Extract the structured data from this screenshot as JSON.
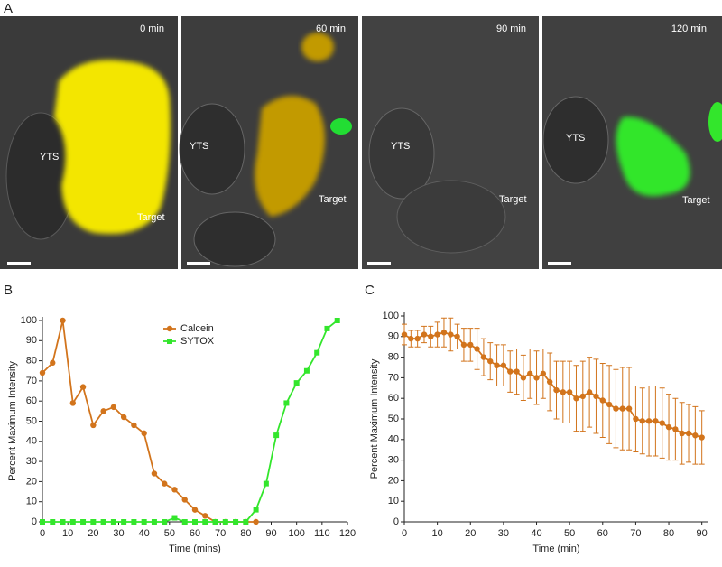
{
  "figure_labels": [
    "A",
    "B",
    "C"
  ],
  "panels": [
    {
      "time": "0 min",
      "labels": [
        "YTS",
        "Target"
      ]
    },
    {
      "time": "60 min",
      "labels": [
        "YTS",
        "Target"
      ]
    },
    {
      "time": "90 min",
      "labels": [
        "YTS",
        "Target"
      ]
    },
    {
      "time": "120 min",
      "labels": [
        "YTS",
        "Target"
      ]
    }
  ],
  "chart_data": [
    {
      "type": "line",
      "x_label": "Time (mins)",
      "y_label": "Percent Maximum Intensity",
      "x": [
        0,
        4,
        8,
        12,
        16,
        20,
        24,
        28,
        32,
        36,
        40,
        44,
        48,
        52,
        56,
        60,
        64,
        68,
        72,
        76,
        80,
        84,
        88,
        92,
        96,
        100,
        104,
        108,
        112,
        116
      ],
      "series": [
        {
          "name": "Calcein",
          "color": "#d2741c",
          "marker": "circle",
          "values": [
            74,
            79,
            100,
            59,
            67,
            48,
            55,
            57,
            52,
            48,
            44,
            24,
            19,
            16,
            11,
            6,
            3,
            0,
            0,
            0,
            0,
            0,
            null,
            null,
            null,
            null,
            null,
            null,
            null,
            null
          ]
        },
        {
          "name": "SYTOX",
          "color": "#33e62c",
          "marker": "square",
          "values": [
            0,
            0,
            0,
            0,
            0,
            0,
            0,
            0,
            0,
            0,
            0,
            0,
            0,
            2,
            0,
            0,
            0,
            0,
            0,
            0,
            0,
            6,
            19,
            43,
            59,
            69,
            75,
            84,
            96,
            100
          ]
        }
      ],
      "xlim": [
        0,
        120
      ],
      "xticks": [
        0,
        10,
        20,
        30,
        40,
        50,
        60,
        70,
        80,
        90,
        100,
        110,
        120
      ],
      "ylim": [
        0,
        100
      ],
      "yticks": [
        0,
        10,
        20,
        30,
        40,
        50,
        60,
        70,
        80,
        90,
        100
      ],
      "legend": "top-center"
    },
    {
      "type": "line",
      "x_label": "Time (min)",
      "y_label": "Percent Maximum Intensity",
      "x": [
        0,
        2,
        4,
        6,
        8,
        10,
        12,
        14,
        16,
        18,
        20,
        22,
        24,
        26,
        28,
        30,
        32,
        34,
        36,
        38,
        40,
        42,
        44,
        46,
        48,
        50,
        52,
        54,
        56,
        58,
        60,
        62,
        64,
        66,
        68,
        70,
        72,
        74,
        76,
        78,
        80,
        82,
        84,
        86,
        88,
        90
      ],
      "series": [
        {
          "color": "#d2741c",
          "marker": "circle",
          "values": [
            91,
            89,
            89,
            91,
            90,
            91,
            92,
            91,
            90,
            86,
            86,
            84,
            80,
            78,
            76,
            76,
            73,
            73,
            70,
            72,
            70,
            72,
            68,
            64,
            63,
            63,
            60,
            61,
            63,
            61,
            59,
            57,
            55,
            55,
            55,
            50,
            49,
            49,
            49,
            48,
            46,
            45,
            43,
            43,
            42,
            41
          ],
          "errors": [
            5,
            4,
            4,
            4,
            5,
            6,
            7,
            8,
            6,
            8,
            8,
            10,
            9,
            9,
            10,
            10,
            10,
            11,
            11,
            12,
            13,
            12,
            14,
            14,
            15,
            15,
            16,
            17,
            17,
            18,
            18,
            19,
            19,
            20,
            20,
            16,
            16,
            17,
            17,
            17,
            16,
            15,
            15,
            14,
            14,
            13
          ]
        }
      ],
      "xlim": [
        0,
        92
      ],
      "xticks": [
        0,
        10,
        20,
        30,
        40,
        50,
        60,
        70,
        80,
        90
      ],
      "ylim": [
        0,
        100
      ],
      "yticks": [
        0,
        10,
        20,
        30,
        40,
        50,
        60,
        70,
        80,
        90,
        100
      ]
    }
  ]
}
